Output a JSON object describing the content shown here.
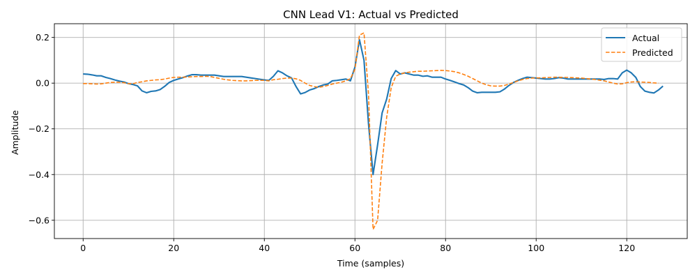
{
  "chart_data": {
    "type": "line",
    "title": "CNN Lead V1: Actual vs Predicted",
    "xlabel": "Time (samples)",
    "ylabel": "Amplitude",
    "xlim": [
      -6.35,
      133.35
    ],
    "ylim": [
      -0.68,
      0.26
    ],
    "xticks": [
      0,
      20,
      40,
      60,
      80,
      100,
      120
    ],
    "yticks": [
      -0.6,
      -0.4,
      -0.2,
      0.0,
      0.2
    ],
    "ytick_labels": [
      "−0.6",
      "−0.4",
      "−0.2",
      "0.0",
      "0.2"
    ],
    "grid": true,
    "legend_position": "top-right",
    "series": [
      {
        "name": "Actual",
        "color": "#1f77b4",
        "style": "solid",
        "values": [
          0.04,
          0.039,
          0.036,
          0.032,
          0.032,
          0.025,
          0.02,
          0.014,
          0.009,
          0.005,
          -0.002,
          -0.006,
          -0.012,
          -0.034,
          -0.042,
          -0.036,
          -0.034,
          -0.028,
          -0.014,
          0.003,
          0.012,
          0.018,
          0.024,
          0.031,
          0.037,
          0.037,
          0.035,
          0.035,
          0.035,
          0.035,
          0.032,
          0.029,
          0.029,
          0.029,
          0.029,
          0.029,
          0.026,
          0.023,
          0.02,
          0.017,
          0.014,
          0.012,
          0.03,
          0.054,
          0.045,
          0.032,
          0.023,
          -0.015,
          -0.047,
          -0.041,
          -0.03,
          -0.024,
          -0.015,
          -0.008,
          -0.004,
          0.01,
          0.012,
          0.015,
          0.018,
          0.01,
          0.07,
          0.19,
          0.1,
          -0.18,
          -0.4,
          -0.27,
          -0.13,
          -0.07,
          0.02,
          0.055,
          0.04,
          0.045,
          0.04,
          0.035,
          0.035,
          0.03,
          0.032,
          0.026,
          0.026,
          0.026,
          0.018,
          0.012,
          0.005,
          -0.002,
          -0.008,
          -0.02,
          -0.035,
          -0.042,
          -0.04,
          -0.04,
          -0.04,
          -0.04,
          -0.038,
          -0.026,
          -0.01,
          0.003,
          0.012,
          0.02,
          0.026,
          0.024,
          0.022,
          0.02,
          0.018,
          0.018,
          0.02,
          0.024,
          0.022,
          0.018,
          0.018,
          0.018,
          0.018,
          0.018,
          0.018,
          0.018,
          0.018,
          0.016,
          0.02,
          0.02,
          0.018,
          0.045,
          0.057,
          0.045,
          0.025,
          -0.015,
          -0.035,
          -0.04,
          -0.043,
          -0.03,
          -0.013
        ]
      },
      {
        "name": "Predicted",
        "color": "#ff7f0e",
        "style": "dashed",
        "values": [
          -0.002,
          -0.002,
          -0.003,
          -0.004,
          -0.003,
          0.0,
          0.003,
          0.004,
          0.004,
          0.002,
          -0.002,
          -0.003,
          0.003,
          0.006,
          0.01,
          0.012,
          0.014,
          0.015,
          0.018,
          0.022,
          0.025,
          0.026,
          0.026,
          0.027,
          0.028,
          0.029,
          0.029,
          0.03,
          0.029,
          0.025,
          0.021,
          0.017,
          0.014,
          0.012,
          0.011,
          0.01,
          0.01,
          0.011,
          0.012,
          0.012,
          0.012,
          0.01,
          0.015,
          0.017,
          0.02,
          0.022,
          0.022,
          0.019,
          0.012,
          0.0,
          -0.01,
          -0.015,
          -0.018,
          -0.015,
          -0.01,
          -0.004,
          0.0,
          0.004,
          0.01,
          0.02,
          0.06,
          0.21,
          0.22,
          -0.05,
          -0.64,
          -0.6,
          -0.35,
          -0.15,
          -0.02,
          0.03,
          0.04,
          0.045,
          0.048,
          0.05,
          0.052,
          0.052,
          0.053,
          0.054,
          0.055,
          0.056,
          0.055,
          0.053,
          0.05,
          0.045,
          0.038,
          0.03,
          0.02,
          0.01,
          0.0,
          -0.007,
          -0.012,
          -0.013,
          -0.013,
          -0.01,
          -0.004,
          0.003,
          0.01,
          0.016,
          0.02,
          0.022,
          0.023,
          0.023,
          0.024,
          0.025,
          0.026,
          0.026,
          0.025,
          0.025,
          0.024,
          0.023,
          0.022,
          0.02,
          0.018,
          0.016,
          0.013,
          0.01,
          0.005,
          0.0,
          -0.004,
          -0.003,
          0.002,
          0.005,
          0.006,
          0.005,
          0.004,
          0.003,
          0.001,
          0.0
        ]
      }
    ]
  }
}
